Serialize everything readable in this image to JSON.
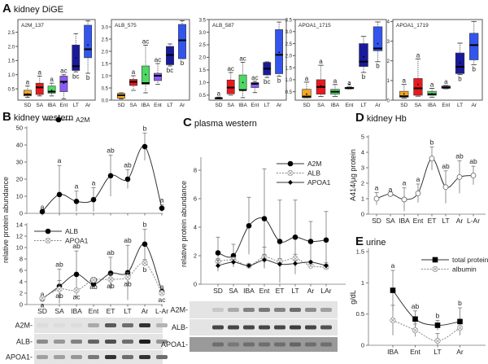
{
  "panels": [
    {
      "letter": "A",
      "title": "kidney DiGE"
    },
    {
      "letter": "B",
      "title": "kidney western"
    },
    {
      "letter": "C",
      "title": "plasma western"
    },
    {
      "letter": "D",
      "title": "kidney Hb"
    },
    {
      "letter": "E",
      "title": "urine"
    }
  ],
  "box_colors": [
    "#f5a623",
    "#e8191f",
    "#4cd964",
    "#8a5cf5",
    "#1a1a9c",
    "#3355ee"
  ],
  "blots": [
    {
      "panel": "B",
      "labels": [
        "A2M-",
        "ALB-",
        "APOA1-"
      ]
    },
    {
      "panel": "C",
      "labels": [
        "A2M-",
        "ALB-",
        "APOA1-"
      ]
    }
  ],
  "chart_data": [
    {
      "type": "box",
      "title": "A2M_137",
      "categories": [
        "SD",
        "SA",
        "IBA",
        "Ent",
        "LT",
        "Ar"
      ],
      "ylim": [
        0.1,
        2.95
      ],
      "yticks": [
        0.5,
        1.0,
        1.5,
        2.0,
        2.5
      ],
      "boxes": [
        {
          "min": 0.2,
          "q1": 0.25,
          "median": 0.3,
          "q3": 0.45,
          "max": 0.6,
          "mean": 0.32,
          "letter": "a"
        },
        {
          "min": 0.25,
          "q1": 0.3,
          "median": 0.55,
          "q3": 0.7,
          "max": 0.95,
          "mean": 0.55,
          "letter": "a"
        },
        {
          "min": 0.25,
          "q1": 0.35,
          "median": 0.4,
          "q3": 0.6,
          "max": 0.7,
          "mean": 0.45,
          "letter": "a"
        },
        {
          "min": 0.15,
          "q1": 0.4,
          "median": 0.75,
          "q3": 0.95,
          "max": 1.0,
          "mean": 0.7,
          "letter": "ac"
        },
        {
          "min": 1.1,
          "q1": 1.15,
          "median": 1.3,
          "q3": 2.05,
          "max": 2.45,
          "mean": 1.6,
          "letter": "bc"
        },
        {
          "min": 1.05,
          "q1": 1.6,
          "median": 1.9,
          "q3": 2.75,
          "max": 2.9,
          "mean": 2.05,
          "letter": "b"
        }
      ]
    },
    {
      "type": "box",
      "title": "ALB_575",
      "categories": [
        "SD",
        "SA",
        "IBA",
        "Ent",
        "LT",
        "Ar"
      ],
      "ylim": [
        0,
        3.3
      ],
      "yticks": [
        0.0,
        0.5,
        1.0,
        1.5,
        2.0,
        2.5,
        3.0
      ],
      "boxes": [
        {
          "min": 0.05,
          "q1": 0.08,
          "median": 0.2,
          "q3": 0.28,
          "max": 0.3,
          "mean": 0.2,
          "letter": ""
        },
        {
          "min": 0.4,
          "q1": 0.6,
          "median": 0.75,
          "q3": 0.85,
          "max": 1.0,
          "mean": 0.75,
          "letter": "a"
        },
        {
          "min": 0.3,
          "q1": 0.65,
          "median": 0.7,
          "q3": 1.4,
          "max": 2.25,
          "mean": 1.05,
          "letter": "ac"
        },
        {
          "min": 0.65,
          "q1": 0.8,
          "median": 1.0,
          "q3": 1.1,
          "max": 1.5,
          "mean": 1.0,
          "letter": "ac"
        },
        {
          "min": 1.4,
          "q1": 1.45,
          "median": 1.85,
          "q3": 2.2,
          "max": 2.3,
          "mean": 1.85,
          "letter": "bc"
        },
        {
          "min": 1.7,
          "q1": 1.7,
          "median": 2.45,
          "q3": 3.1,
          "max": 3.25,
          "mean": 2.45,
          "letter": "b"
        }
      ]
    },
    {
      "type": "box",
      "title": "ALB_587",
      "categories": [
        "SD",
        "SA",
        "IBA",
        "Ent",
        "LT",
        "Ar"
      ],
      "ylim": [
        0.3,
        3.5
      ],
      "yticks": [
        0.5,
        1.0,
        1.5,
        2.0,
        2.5,
        3.0,
        3.5
      ],
      "boxes": [
        {
          "min": 0.35,
          "q1": 0.35,
          "median": 0.38,
          "q3": 0.4,
          "max": 0.42,
          "mean": 0.38,
          "letter": "a"
        },
        {
          "min": 0.5,
          "q1": 0.55,
          "median": 0.8,
          "q3": 1.1,
          "max": 1.4,
          "mean": 0.8,
          "letter": "ac"
        },
        {
          "min": 0.4,
          "q1": 0.7,
          "median": 0.7,
          "q3": 1.3,
          "max": 1.8,
          "mean": 1.0,
          "letter": "ac"
        },
        {
          "min": 0.6,
          "q1": 0.8,
          "median": 0.95,
          "q3": 1.0,
          "max": 1.05,
          "mean": 0.95,
          "letter": "ac"
        },
        {
          "min": 1.2,
          "q1": 1.3,
          "median": 1.55,
          "q3": 1.8,
          "max": 1.82,
          "mean": 1.55,
          "letter": "bc"
        },
        {
          "min": 1.25,
          "q1": 1.35,
          "median": 2.1,
          "q3": 3.1,
          "max": 3.4,
          "mean": 2.2,
          "letter": "b"
        }
      ]
    },
    {
      "type": "box",
      "title": "APOA1_1715",
      "categories": [
        "SD",
        "SA",
        "IBA",
        "Ent",
        "LT",
        "Ar"
      ],
      "ylim": [
        0.15,
        3.5
      ],
      "yticks": [
        0.5,
        1.0,
        1.5,
        2.0,
        2.5,
        3.0,
        3.5
      ],
      "boxes": [
        {
          "min": 0.25,
          "q1": 0.25,
          "median": 0.3,
          "q3": 0.6,
          "max": 0.9,
          "mean": 0.4,
          "letter": "a"
        },
        {
          "min": 0.3,
          "q1": 0.4,
          "median": 0.7,
          "q3": 1.0,
          "max": 1.6,
          "mean": 0.75,
          "letter": "a"
        },
        {
          "min": 0.3,
          "q1": 0.4,
          "median": 0.5,
          "q3": 0.6,
          "max": 0.8,
          "mean": 0.5,
          "letter": "a"
        },
        {
          "min": 0.62,
          "q1": 0.63,
          "median": 0.65,
          "q3": 0.68,
          "max": 0.7,
          "mean": 0.8,
          "letter": "a"
        },
        {
          "min": 1.3,
          "q1": 1.55,
          "median": 1.75,
          "q3": 2.5,
          "max": 2.8,
          "mean": 1.95,
          "letter": "b"
        },
        {
          "min": 1.75,
          "q1": 2.2,
          "median": 2.3,
          "q3": 3.2,
          "max": 3.4,
          "mean": 2.5,
          "letter": "b"
        }
      ]
    },
    {
      "type": "box",
      "title": "APOA1_1719",
      "categories": [
        "SD",
        "SA",
        "IBA",
        "Ent",
        "LT",
        "Ar"
      ],
      "ylim": [
        0,
        4.1
      ],
      "yticks": [
        0,
        1,
        2,
        3,
        4
      ],
      "boxes": [
        {
          "min": 0.1,
          "q1": 0.15,
          "median": 0.2,
          "q3": 0.45,
          "max": 0.8,
          "mean": 0.32,
          "letter": "a"
        },
        {
          "min": 0.2,
          "q1": 0.25,
          "median": 0.6,
          "q3": 1.1,
          "max": 2.1,
          "mean": 0.8,
          "letter": "a"
        },
        {
          "min": 0.15,
          "q1": 0.25,
          "median": 0.3,
          "q3": 0.45,
          "max": 0.6,
          "mean": 0.32,
          "letter": "a"
        },
        {
          "min": 0.58,
          "q1": 0.6,
          "median": 0.65,
          "q3": 0.72,
          "max": 0.75,
          "mean": 0.65,
          "letter": "a"
        },
        {
          "min": 1.3,
          "q1": 1.35,
          "median": 1.7,
          "q3": 2.4,
          "max": 2.9,
          "mean": 1.9,
          "letter": "b"
        },
        {
          "min": 1.8,
          "q1": 2.05,
          "median": 2.8,
          "q3": 3.4,
          "max": 4.0,
          "mean": 2.8,
          "letter": "b"
        }
      ]
    },
    {
      "type": "line",
      "panel": "B",
      "ylabel": "relative protein abundance",
      "categories": [
        "SD",
        "SA",
        "IBA",
        "Ent",
        "ET",
        "LT",
        "Ar",
        "L-Ar"
      ],
      "ylim": [
        0,
        50
      ],
      "yticks": [
        0,
        10,
        20,
        30,
        40,
        50
      ],
      "show_xlabels": false,
      "series": [
        {
          "name": "A2M",
          "marker": "filled-circle",
          "dashed": false,
          "letters_pos": "above",
          "values": [
            1,
            11,
            7,
            8,
            22,
            20,
            39,
            3
          ],
          "err": [
            0,
            17,
            6,
            7,
            12,
            5.5,
            8,
            2
          ],
          "letters": [
            "a",
            "a",
            "a",
            "a",
            "ab",
            "ab",
            "b",
            "a"
          ]
        }
      ]
    },
    {
      "type": "line",
      "panel": "B",
      "categories": [
        "SD",
        "SA",
        "IBA",
        "Ent",
        "ET",
        "LT",
        "Ar",
        "L-Ar"
      ],
      "ylim": [
        0,
        14
      ],
      "yticks": [
        0,
        2,
        4,
        6,
        8,
        10,
        12,
        14
      ],
      "show_xlabels": true,
      "series": [
        {
          "name": "ALB",
          "marker": "filled-circle",
          "dashed": false,
          "letters_pos": "above",
          "values": [
            1,
            3.2,
            5.3,
            3.6,
            5.5,
            5.6,
            10.6,
            2.3
          ],
          "err": [
            0,
            3,
            4.1,
            0,
            2.8,
            4.8,
            2.6,
            0
          ],
          "letters": [
            "a",
            "ab",
            "ab",
            "ab",
            "ab",
            "ab",
            "b",
            "a"
          ]
        },
        {
          "name": "APOA1",
          "marker": "open-x-circle",
          "dashed": true,
          "letters_pos": "below",
          "values": [
            1.1,
            2.7,
            2.5,
            4.3,
            4.4,
            4.8,
            7.3,
            2.0
          ],
          "err": [
            0.3,
            1.5,
            0,
            0.5,
            1,
            0.8,
            0.6,
            0.5
          ],
          "letters": [
            "a",
            "ab",
            "ac",
            "ab",
            "ab",
            "ab",
            "b",
            "ac"
          ]
        }
      ]
    },
    {
      "type": "line",
      "panel": "C",
      "ylabel": "relative protein abundance",
      "categories": [
        "SD",
        "SA",
        "IBA",
        "Ent",
        "ET",
        "LT",
        "Ar",
        "LAr"
      ],
      "ylim": [
        0,
        9
      ],
      "yticks": [
        0,
        2,
        4,
        6,
        8
      ],
      "show_xlabels": true,
      "series": [
        {
          "name": "A2M",
          "marker": "filled-circle",
          "dashed": false,
          "values": [
            2.2,
            2.0,
            4.1,
            4.6,
            3.0,
            3.3,
            3.0,
            3.1
          ],
          "err": [
            1.1,
            0.8,
            2,
            3.5,
            2.9,
            2.6,
            1.4,
            2
          ]
        },
        {
          "name": "ALB",
          "marker": "open-x-circle",
          "dashed": true,
          "values": [
            1.6,
            1.7,
            1.3,
            1.9,
            1.6,
            1.8,
            1.3,
            1.2
          ],
          "err": [
            0.2,
            0.2,
            0.1,
            0.7,
            0.2,
            0.3,
            0.1,
            0.2
          ]
        },
        {
          "name": "APOA1",
          "marker": "filled-diamond",
          "dashed": false,
          "values": [
            1.3,
            1.55,
            1.3,
            1.7,
            1.4,
            1.45,
            1.55,
            1.3
          ],
          "err": [
            0.4,
            0.2,
            0.1,
            0.4,
            0.1,
            0.2,
            0.1,
            0.2
          ]
        }
      ]
    },
    {
      "type": "line",
      "panel": "D",
      "ylabel": "A414/µg protein",
      "categories": [
        "SD",
        "SA",
        "IBA",
        "Ent",
        "ET",
        "LT",
        "Ar",
        "L-Ar"
      ],
      "ylim": [
        0,
        5
      ],
      "yticks": [
        0,
        1,
        2,
        3,
        4,
        5
      ],
      "show_xlabels": true,
      "series": [
        {
          "marker": "open-circle",
          "dashed": false,
          "letters_pos": "above",
          "values": [
            1.0,
            1.3,
            0.95,
            1.35,
            3.6,
            1.75,
            2.4,
            2.5
          ],
          "err": [
            0.4,
            0,
            0.75,
            0.6,
            0.75,
            1.05,
            1.05,
            0.6
          ],
          "letters": [
            "a",
            "a",
            "a",
            "a",
            "b",
            "ab",
            "ab",
            "ab"
          ]
        }
      ]
    },
    {
      "type": "line",
      "panel": "E",
      "ylabel": "g/dL",
      "categories": [
        "IBA",
        "Ent",
        "LT",
        "Ar"
      ],
      "ylim": [
        0,
        1.5
      ],
      "yticks": [
        0,
        0.5,
        1,
        1.5
      ],
      "ytick_labels": [
        "0",
        "0.5",
        "1",
        "1.5"
      ],
      "show_xlabels": true,
      "series": [
        {
          "name": "total protein",
          "marker": "filled-square",
          "dashed": false,
          "letters_pos": "above",
          "values": [
            0.88,
            0.42,
            0.32,
            0.38
          ],
          "err": [
            0.32,
            0.13,
            0.08,
            0.22
          ],
          "letters": [
            "a",
            "ab",
            "b",
            "b"
          ]
        },
        {
          "name": "albumin",
          "marker": "open-x-circle",
          "dashed": true,
          "values": [
            0.4,
            0.24,
            0.07,
            0.28
          ],
          "err": [
            0.24,
            0.1,
            0.12,
            0
          ]
        }
      ]
    }
  ]
}
